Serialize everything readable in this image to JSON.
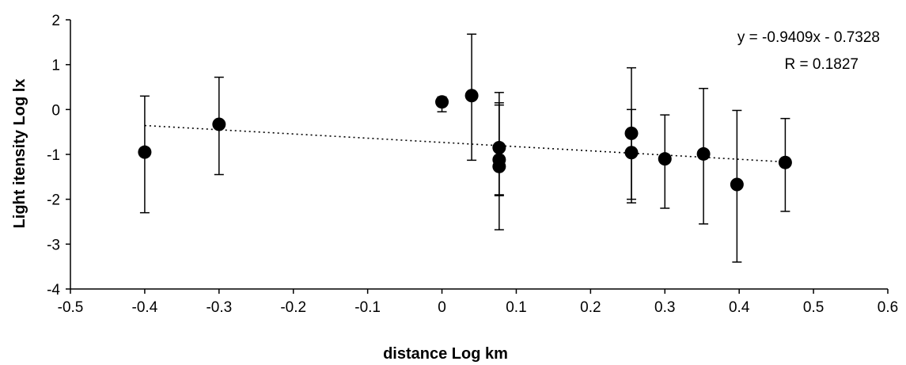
{
  "chart_data": {
    "type": "scatter",
    "title": "",
    "xlabel": "distance Log km",
    "ylabel": "Light itensity Log lx",
    "xlim": [
      -0.5,
      0.6
    ],
    "ylim": [
      -4,
      2
    ],
    "x_ticks": [
      "-0.5",
      "-0.4",
      "-0.3",
      "-0.2",
      "-0.1",
      "0",
      "0.1",
      "0.2",
      "0.3",
      "0.4",
      "0.5",
      "0.6"
    ],
    "y_ticks": [
      "2",
      "1",
      "0",
      "-1",
      "-2",
      "-3",
      "-4"
    ],
    "grid": false,
    "legend": "none",
    "marker_color": "#000000",
    "points": [
      {
        "x": -0.4,
        "y": -0.95,
        "err_low": -2.3,
        "err_high": 0.3
      },
      {
        "x": -0.3,
        "y": -0.33,
        "err_low": -1.45,
        "err_high": 0.72
      },
      {
        "x": 0.0,
        "y": 0.17,
        "err_low": -0.05,
        "err_high": 0.28
      },
      {
        "x": 0.04,
        "y": 0.31,
        "err_low": -1.13,
        "err_high": 1.68
      },
      {
        "x": 0.077,
        "y": -0.85,
        "err_low": -1.9,
        "err_high": 0.15
      },
      {
        "x": 0.077,
        "y": -1.12,
        "err_low": -2.68,
        "err_high": 0.38
      },
      {
        "x": 0.077,
        "y": -1.27,
        "err_low": -1.92,
        "err_high": 0.1
      },
      {
        "x": 0.255,
        "y": -0.53,
        "err_low": -2.0,
        "err_high": 0.93
      },
      {
        "x": 0.255,
        "y": -0.96,
        "err_low": -2.08,
        "err_high": 0.0
      },
      {
        "x": 0.3,
        "y": -1.1,
        "err_low": -2.2,
        "err_high": -0.12
      },
      {
        "x": 0.352,
        "y": -0.99,
        "err_low": -2.55,
        "err_high": 0.47
      },
      {
        "x": 0.397,
        "y": -1.67,
        "err_low": -3.4,
        "err_high": -0.02
      },
      {
        "x": 0.462,
        "y": -1.18,
        "err_low": -2.27,
        "err_high": -0.2
      }
    ],
    "trendline": {
      "style": "dotted",
      "x_range": [
        -0.4,
        0.462
      ],
      "slope": -0.9409,
      "intercept": -0.7328
    },
    "annotations": [
      "y = -0.9409x - 0.7328",
      "R = 0.1827"
    ]
  }
}
